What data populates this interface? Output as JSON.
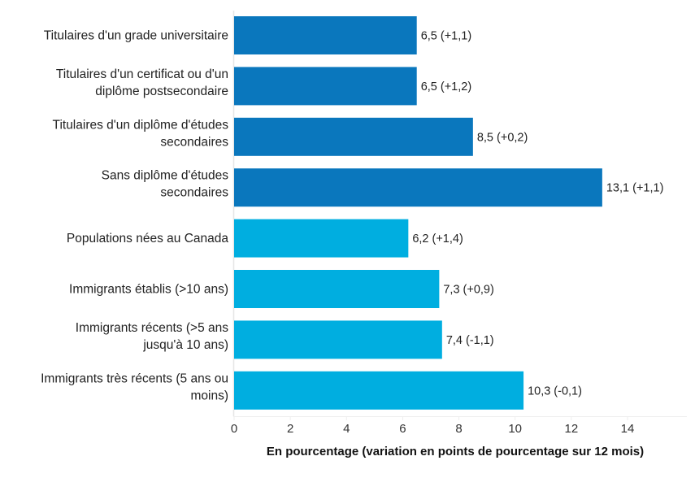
{
  "chart_data": {
    "type": "bar",
    "orientation": "horizontal",
    "xlabel": "En pourcentage (variation en points de pourcentage sur 12 mois)",
    "ylabel": "",
    "xlim": [
      0,
      16
    ],
    "xticks": [
      0,
      2,
      4,
      6,
      8,
      10,
      12,
      14
    ],
    "grid": false,
    "categories": [
      [
        "Titulaires d'un grade universitaire"
      ],
      [
        "Titulaires d'un certificat ou d'un",
        "diplôme postsecondaire"
      ],
      [
        "Titulaires d'un diplôme d'études",
        "secondaires"
      ],
      [
        "Sans diplôme d'études",
        "secondaires"
      ],
      [
        "Populations nées au Canada"
      ],
      [
        "Immigrants établis (>10 ans)"
      ],
      [
        "Immigrants récents (>5 ans",
        "jusqu'à 10 ans)"
      ],
      [
        "Immigrants très récents (5 ans ou",
        "moins)"
      ]
    ],
    "values": [
      6.5,
      6.5,
      8.5,
      13.1,
      6.2,
      7.3,
      7.4,
      10.3
    ],
    "data_labels": [
      "6,5 (+1,1)",
      "6,5 (+1,2)",
      "8,5 (+0,2)",
      "13,1 (+1,1)",
      "6,2 (+1,4)",
      "7,3 (+0,9)",
      "7,4 (-1,1)",
      "10,3 (-0,1)"
    ],
    "changes": [
      1.1,
      1.2,
      0.2,
      1.1,
      1.4,
      0.9,
      -1.1,
      -0.1
    ],
    "bar_colors": [
      "#0A77BD",
      "#0A77BD",
      "#0A77BD",
      "#0A77BD",
      "#00AEE0",
      "#00AEE0",
      "#00AEE0",
      "#00AEE0"
    ]
  }
}
